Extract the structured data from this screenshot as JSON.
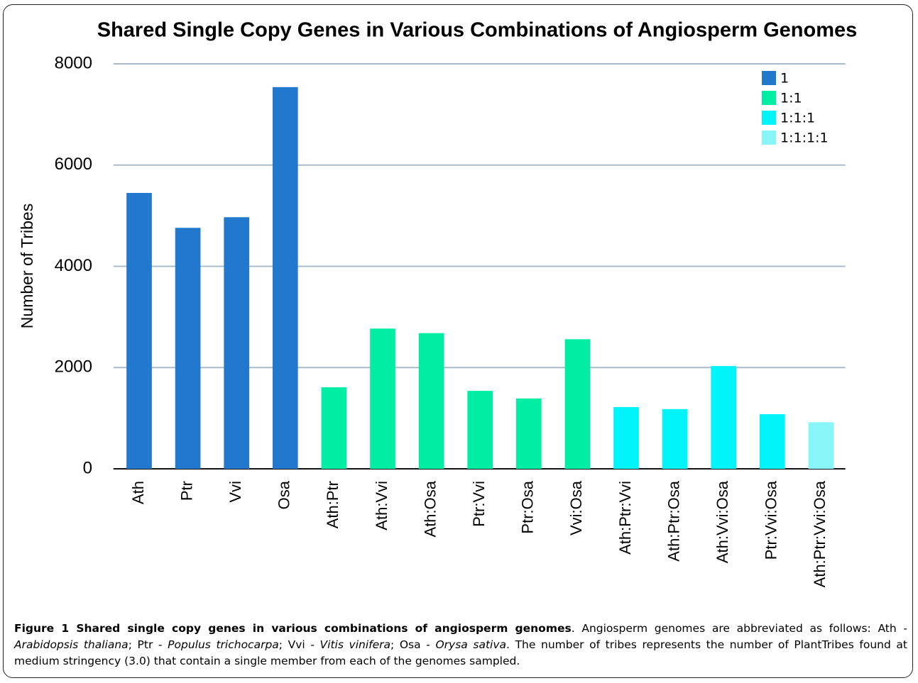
{
  "chart_data": {
    "type": "bar",
    "title": "Shared Single Copy Genes in Various Combinations of Angiosperm Genomes",
    "y_label": "Number of Tribes",
    "categories": [
      "Ath",
      "Ptr",
      "Vvi",
      "Osa",
      "Ath:Ptr",
      "Ath:Vvi",
      "Ath:Osa",
      "Ptr:Vvi",
      "Ptr:Osa",
      "Vvi:Osa",
      "Ath:Ptr:Vvi",
      "Ath:Ptr:Osa",
      "Ath:Vvi:Osa",
      "Ptr:Vvi:Osa",
      "Ath:Ptr:Vvi:Osa"
    ],
    "series": [
      {
        "name": "1",
        "color": "#2178cc",
        "values": [
          5450,
          4760,
          4970,
          7540,
          null,
          null,
          null,
          null,
          null,
          null,
          null,
          null,
          null,
          null,
          null
        ]
      },
      {
        "name": "1:1",
        "color": "#00eea4",
        "values": [
          null,
          null,
          null,
          null,
          1610,
          2770,
          2680,
          1540,
          1390,
          2560,
          null,
          null,
          null,
          null,
          null
        ]
      },
      {
        "name": "1:1:1",
        "color": "#00f4fa",
        "values": [
          null,
          null,
          null,
          null,
          null,
          null,
          null,
          null,
          null,
          null,
          1220,
          1180,
          2030,
          1080,
          null
        ]
      },
      {
        "name": "1:1:1:1",
        "color": "#88f6f8",
        "values": [
          null,
          null,
          null,
          null,
          null,
          null,
          null,
          null,
          null,
          null,
          null,
          null,
          null,
          null,
          920
        ]
      }
    ],
    "ylim": [
      0,
      8000
    ],
    "yticks": [
      0,
      2000,
      4000,
      6000,
      8000
    ],
    "grid": true,
    "legend": "top-right"
  },
  "caption": {
    "parts": [
      "Figure 1 Shared single copy genes in various combinations of angiosperm genomes",
      ". Angiosperm genomes are abbreviated as follows: Ath - ",
      "Arabidopsis thaliana",
      "; Ptr - ",
      "Populus trichocarpa",
      "; Vvi - ",
      "Vitis vinifera",
      "; Osa - ",
      "Orysa sativa",
      ". The number of tribes represents the number of PlantTribes found at medium stringency (3.0) that contain a single member from each of the genomes sampled."
    ]
  }
}
